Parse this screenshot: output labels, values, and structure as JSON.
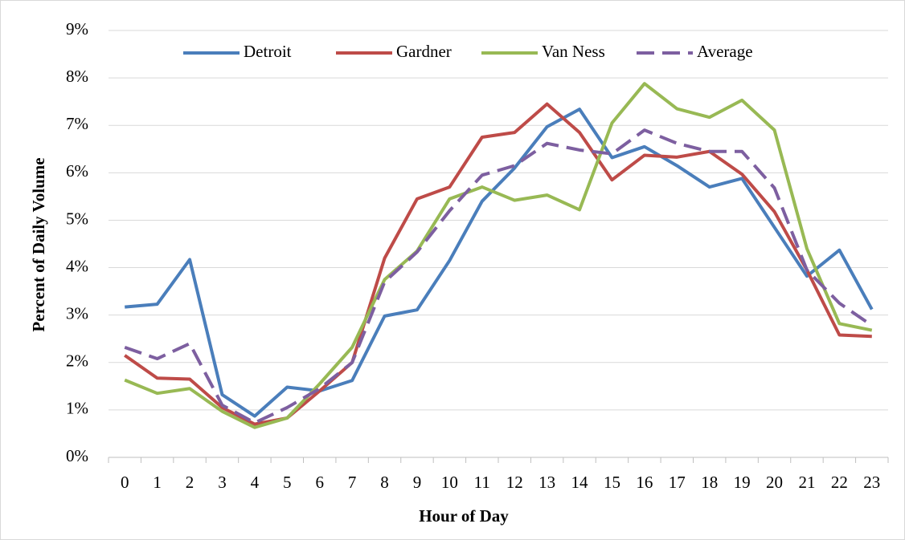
{
  "chart_data": {
    "type": "line",
    "xlabel": "Hour of Day",
    "ylabel": "Percent of Daily Volume",
    "categories": [
      "0",
      "1",
      "2",
      "3",
      "4",
      "5",
      "6",
      "7",
      "8",
      "9",
      "10",
      "11",
      "12",
      "13",
      "14",
      "15",
      "16",
      "17",
      "18",
      "19",
      "20",
      "21",
      "22",
      "23"
    ],
    "series": [
      {
        "name": "Detroit",
        "color": "#4a7ebb",
        "dashed": false,
        "values": [
          3.17,
          3.23,
          4.17,
          1.32,
          0.87,
          1.48,
          1.4,
          1.62,
          2.98,
          3.11,
          4.15,
          5.4,
          6.1,
          6.97,
          7.34,
          6.32,
          6.55,
          6.15,
          5.7,
          5.88,
          4.85,
          3.82,
          4.37,
          3.12
        ]
      },
      {
        "name": "Gardner",
        "color": "#be4b48",
        "dashed": false,
        "values": [
          2.15,
          1.67,
          1.65,
          1.05,
          0.7,
          0.83,
          1.4,
          2.0,
          4.2,
          5.45,
          5.7,
          6.75,
          6.85,
          7.45,
          6.85,
          5.85,
          6.37,
          6.33,
          6.45,
          5.97,
          5.18,
          3.95,
          2.58,
          2.55
        ]
      },
      {
        "name": "Van Ness",
        "color": "#98b954",
        "dashed": false,
        "values": [
          1.63,
          1.35,
          1.45,
          0.97,
          0.63,
          0.83,
          1.55,
          2.32,
          3.75,
          4.35,
          5.45,
          5.7,
          5.42,
          5.53,
          5.22,
          7.05,
          7.88,
          7.35,
          7.17,
          7.53,
          6.9,
          4.4,
          2.82,
          2.68
        ]
      },
      {
        "name": "Average",
        "color": "#7d5fa0",
        "dashed": true,
        "values": [
          2.32,
          2.08,
          2.4,
          1.1,
          0.73,
          1.05,
          1.45,
          2.0,
          3.7,
          4.33,
          5.2,
          5.95,
          6.15,
          6.62,
          6.48,
          6.4,
          6.9,
          6.62,
          6.45,
          6.45,
          5.68,
          3.95,
          3.25,
          2.78
        ]
      }
    ],
    "ylim": [
      0,
      9
    ],
    "yticks": [
      {
        "value": 0,
        "label": "0%"
      },
      {
        "value": 1,
        "label": "1%"
      },
      {
        "value": 2,
        "label": "2%"
      },
      {
        "value": 3,
        "label": "3%"
      },
      {
        "value": 4,
        "label": "4%"
      },
      {
        "value": 5,
        "label": "5%"
      },
      {
        "value": 6,
        "label": "6%"
      },
      {
        "value": 7,
        "label": "7%"
      },
      {
        "value": 8,
        "label": "8%"
      },
      {
        "value": 9,
        "label": "9%"
      }
    ],
    "grid": true,
    "legend": "top"
  }
}
